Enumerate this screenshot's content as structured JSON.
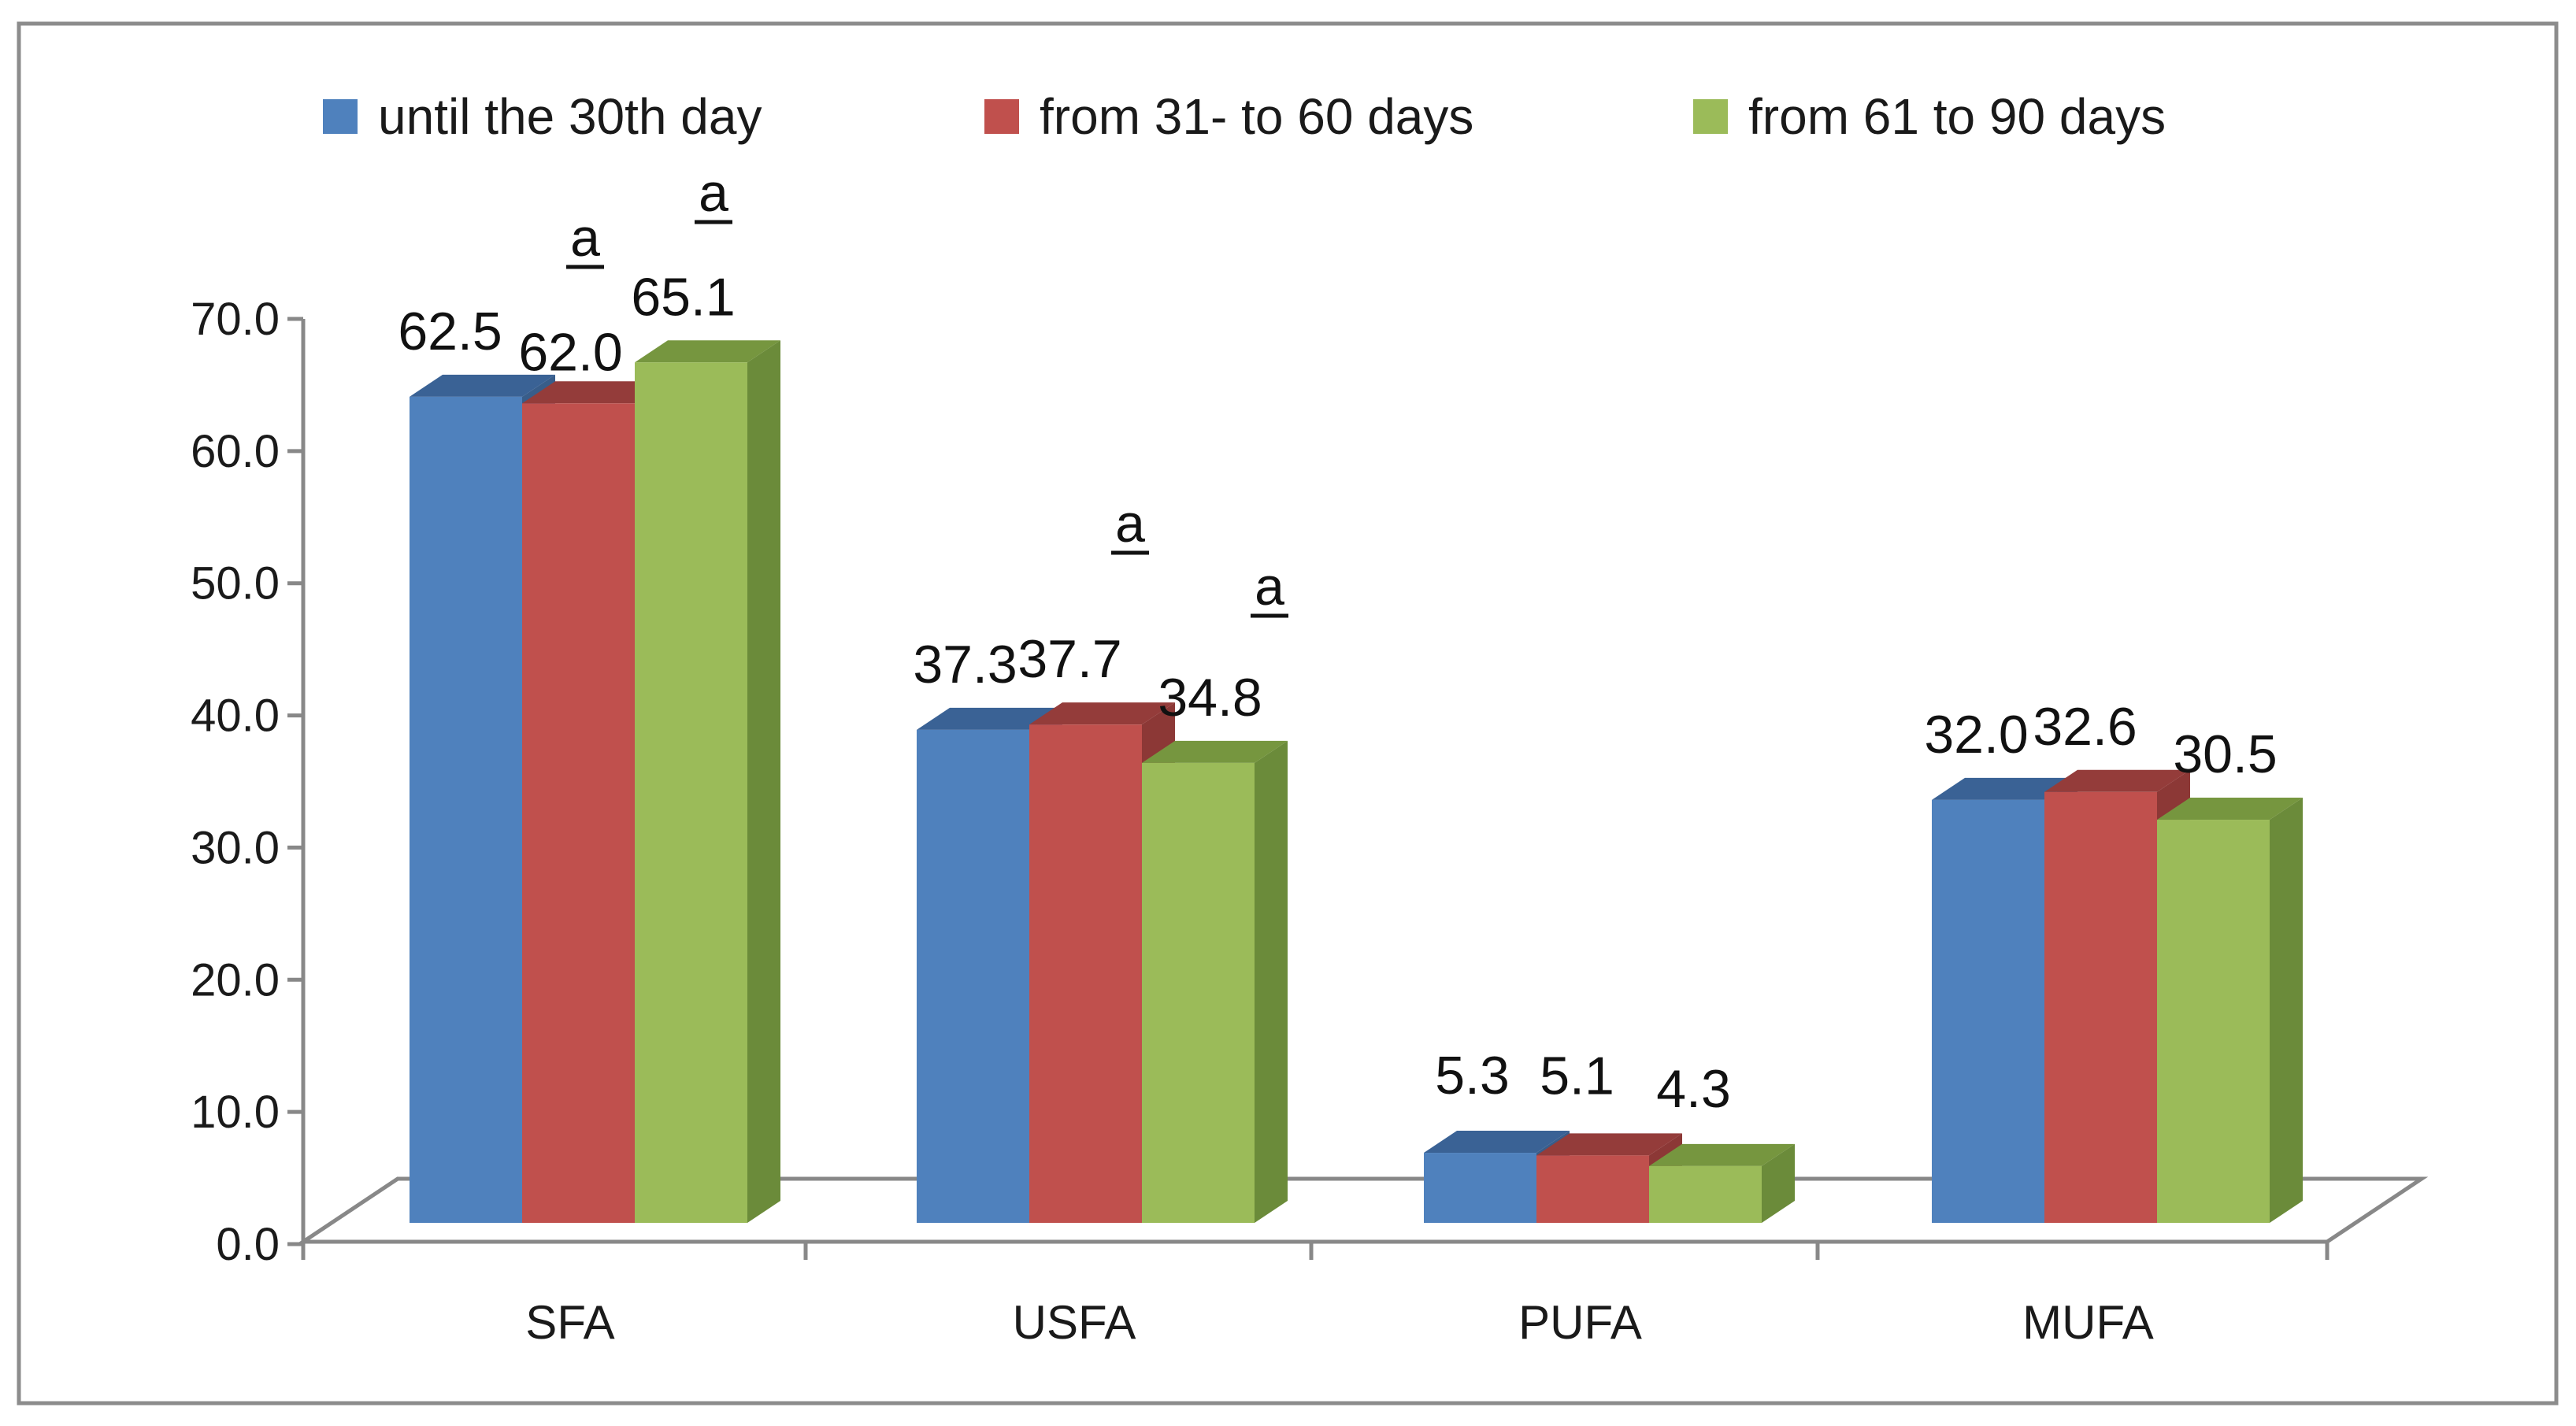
{
  "chart_data": {
    "type": "bar",
    "categories": [
      "SFA",
      "USFA",
      "PUFA",
      "MUFA"
    ],
    "series": [
      {
        "name": "until the 30th day",
        "values": [
          62.5,
          37.3,
          5.3,
          32.0
        ],
        "labels": [
          "62.5",
          "37.3",
          "5.3",
          "32.0"
        ],
        "color": "#4F81BD",
        "side_color": "#385D8A",
        "top_color": "#3A6295"
      },
      {
        "name": "from 31- to 60 days",
        "values": [
          62.0,
          37.7,
          5.1,
          32.6
        ],
        "labels": [
          "62.0",
          "37.7",
          "5.1",
          "32.6"
        ],
        "color": "#C0504D",
        "side_color": "#8C3836",
        "top_color": "#943C3A"
      },
      {
        "name": "from 61 to 90 days",
        "values": [
          65.1,
          34.8,
          4.3,
          30.5
        ],
        "labels": [
          "65.1",
          "34.8",
          "4.3",
          "30.5"
        ],
        "color": "#9BBB59",
        "side_color": "#6B8B3A",
        "top_color": "#76963F"
      }
    ],
    "annotations": [
      {
        "text": "a",
        "category": "SFA",
        "series": 1
      },
      {
        "text": "a",
        "category": "SFA",
        "series": 2
      },
      {
        "text": "a",
        "category": "USFA",
        "series": 1
      },
      {
        "text": "a",
        "category": "USFA",
        "series": 2
      }
    ],
    "y_ticks": [
      "0.0",
      "10.0",
      "20.0",
      "30.0",
      "40.0",
      "50.0",
      "60.0",
      "70.0"
    ],
    "ylim": [
      0,
      70
    ],
    "title": "",
    "xlabel": "",
    "ylabel": "",
    "legend_position": "top",
    "grid": false,
    "three_d": true
  }
}
